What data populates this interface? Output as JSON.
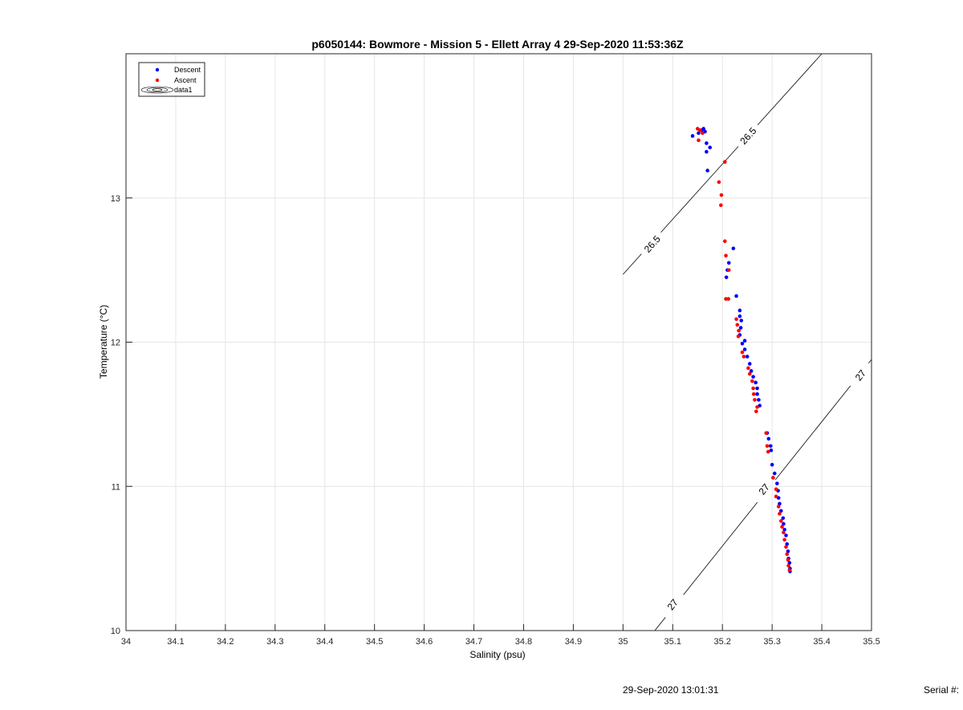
{
  "chart_data": {
    "type": "scatter",
    "title": "p6050144: Bowmore - Mission 5 - Ellett Array 4 29-Sep-2020 11:53:36Z",
    "xlabel": "Salinity (psu)",
    "ylabel": "Temperature (°C)",
    "xlim": [
      34,
      35.5
    ],
    "ylim": [
      10,
      14
    ],
    "xticks": [
      34,
      34.1,
      34.2,
      34.3,
      34.4,
      34.5,
      34.6,
      34.7,
      34.8,
      34.9,
      35,
      35.1,
      35.2,
      35.3,
      35.4,
      35.5
    ],
    "xtick_labels": [
      "34",
      "34.1",
      "34.2",
      "34.3",
      "34.4",
      "34.5",
      "34.6",
      "34.7",
      "34.8",
      "34.9",
      "35",
      "35.1",
      "35.2",
      "35.3",
      "35.4",
      "35.5"
    ],
    "yticks": [
      10,
      11,
      12,
      13
    ],
    "ytick_labels": [
      "10",
      "11",
      "12",
      "13"
    ],
    "grid": true,
    "legend": {
      "position": "top-left",
      "entries": [
        "Descent",
        "Ascent",
        "data1"
      ]
    },
    "colors": {
      "descent": "#0000ff",
      "ascent": "#ff0000",
      "contour": "#000000",
      "grid": "#e6e6e6"
    },
    "series": [
      {
        "name": "Descent",
        "points": [
          [
            35.14,
            13.43
          ],
          [
            35.152,
            13.45
          ],
          [
            35.158,
            13.47
          ],
          [
            35.162,
            13.48
          ],
          [
            35.165,
            13.46
          ],
          [
            35.168,
            13.38
          ],
          [
            35.175,
            13.35
          ],
          [
            35.168,
            13.32
          ],
          [
            35.17,
            13.19
          ],
          [
            35.222,
            12.65
          ],
          [
            35.213,
            12.55
          ],
          [
            35.21,
            12.5
          ],
          [
            35.208,
            12.45
          ],
          [
            35.228,
            12.32
          ],
          [
            35.235,
            12.22
          ],
          [
            35.235,
            12.18
          ],
          [
            35.238,
            12.15
          ],
          [
            35.237,
            12.1
          ],
          [
            35.235,
            12.05
          ],
          [
            35.245,
            12.01
          ],
          [
            35.24,
            11.99
          ],
          [
            35.245,
            11.95
          ],
          [
            35.25,
            11.9
          ],
          [
            35.255,
            11.85
          ],
          [
            35.258,
            11.8
          ],
          [
            35.262,
            11.76
          ],
          [
            35.267,
            11.72
          ],
          [
            35.27,
            11.68
          ],
          [
            35.27,
            11.64
          ],
          [
            35.273,
            11.6
          ],
          [
            35.275,
            11.56
          ],
          [
            35.29,
            11.37
          ],
          [
            35.293,
            11.33
          ],
          [
            35.297,
            11.28
          ],
          [
            35.298,
            11.25
          ],
          [
            35.3,
            11.15
          ],
          [
            35.305,
            11.09
          ],
          [
            35.31,
            11.02
          ],
          [
            35.312,
            10.97
          ],
          [
            35.313,
            10.92
          ],
          [
            35.315,
            10.88
          ],
          [
            35.318,
            10.83
          ],
          [
            35.322,
            10.78
          ],
          [
            35.323,
            10.74
          ],
          [
            35.325,
            10.7
          ],
          [
            35.328,
            10.66
          ],
          [
            35.33,
            10.6
          ],
          [
            35.332,
            10.55
          ],
          [
            35.333,
            10.5
          ],
          [
            35.335,
            10.47
          ],
          [
            35.336,
            10.43
          ],
          [
            35.336,
            10.41
          ]
        ]
      },
      {
        "name": "Ascent",
        "points": [
          [
            35.15,
            13.48
          ],
          [
            35.155,
            13.47
          ],
          [
            35.16,
            13.45
          ],
          [
            35.152,
            13.4
          ],
          [
            35.205,
            13.25
          ],
          [
            35.193,
            13.11
          ],
          [
            35.198,
            13.02
          ],
          [
            35.197,
            12.95
          ],
          [
            35.205,
            12.7
          ],
          [
            35.207,
            12.6
          ],
          [
            35.213,
            12.5
          ],
          [
            35.207,
            12.3
          ],
          [
            35.212,
            12.3
          ],
          [
            35.228,
            12.16
          ],
          [
            35.23,
            12.12
          ],
          [
            35.233,
            12.08
          ],
          [
            35.232,
            12.04
          ],
          [
            35.24,
            11.93
          ],
          [
            35.243,
            11.9
          ],
          [
            35.252,
            11.82
          ],
          [
            35.255,
            11.78
          ],
          [
            35.26,
            11.73
          ],
          [
            35.262,
            11.68
          ],
          [
            35.263,
            11.64
          ],
          [
            35.265,
            11.6
          ],
          [
            35.27,
            11.55
          ],
          [
            35.268,
            11.52
          ],
          [
            35.288,
            11.37
          ],
          [
            35.29,
            11.28
          ],
          [
            35.292,
            11.24
          ],
          [
            35.302,
            11.06
          ],
          [
            35.308,
            10.98
          ],
          [
            35.308,
            10.93
          ],
          [
            35.313,
            10.86
          ],
          [
            35.315,
            10.81
          ],
          [
            35.318,
            10.76
          ],
          [
            35.32,
            10.72
          ],
          [
            35.323,
            10.68
          ],
          [
            35.325,
            10.63
          ],
          [
            35.328,
            10.58
          ],
          [
            35.33,
            10.53
          ],
          [
            35.332,
            10.49
          ],
          [
            35.333,
            10.45
          ],
          [
            35.335,
            10.42
          ]
        ]
      }
    ],
    "contours": [
      {
        "label": "26.5",
        "points": [
          [
            35,
            12.47
          ],
          [
            35.4,
            14.0
          ]
        ],
        "labels": [
          {
            "text": "26.5",
            "x": 35.059,
            "y": 12.68
          },
          {
            "text": "26.5",
            "x": 35.252,
            "y": 13.43
          }
        ]
      },
      {
        "label": "27",
        "points": [
          [
            35.064,
            10.0
          ],
          [
            35.5,
            11.88
          ]
        ],
        "labels": [
          {
            "text": "27",
            "x": 35.1,
            "y": 10.18
          },
          {
            "text": "27",
            "x": 35.284,
            "y": 10.98
          },
          {
            "text": "27",
            "x": 35.478,
            "y": 11.77
          }
        ]
      }
    ]
  },
  "footer": {
    "timestamp": "29-Sep-2020 13:01:31",
    "serial": "Serial #:"
  }
}
